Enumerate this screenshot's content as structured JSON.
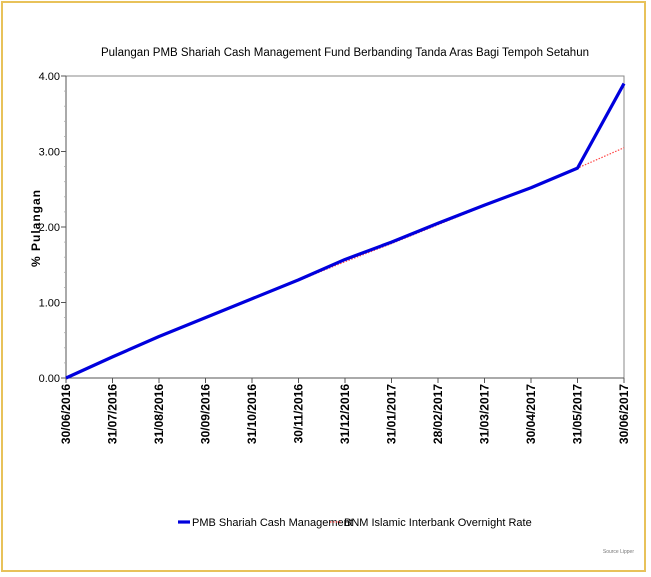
{
  "chart_data": {
    "type": "line",
    "title": "Pulangan PMB Shariah Cash Management Fund Berbanding Tanda Aras Bagi Tempoh Setahun",
    "ylabel": "% Pulangan",
    "xlabel": "",
    "ylim": [
      0,
      4
    ],
    "yticks": [
      "0.00",
      "1.00",
      "2.00",
      "3.00",
      "4.00"
    ],
    "x": [
      "30/06/2016",
      "31/07/2016",
      "31/08/2016",
      "30/09/2016",
      "31/10/2016",
      "30/11/2016",
      "31/12/2016",
      "31/01/2017",
      "28/02/2017",
      "31/03/2017",
      "30/04/2017",
      "31/05/2017",
      "30/06/2017"
    ],
    "series": [
      {
        "name": "PMB Shariah Cash Management",
        "color": "#0000dd",
        "style": "solid",
        "values": [
          0.0,
          0.28,
          0.55,
          0.8,
          1.05,
          1.3,
          1.57,
          1.8,
          2.05,
          2.29,
          2.52,
          2.78,
          3.9
        ]
      },
      {
        "name": "BNM Islamic Interbank Overnight Rate",
        "color": "#ff4444",
        "style": "dotted",
        "values": [
          0.0,
          0.27,
          0.54,
          0.79,
          1.04,
          1.29,
          1.54,
          1.78,
          2.03,
          2.28,
          2.52,
          2.78,
          3.05
        ]
      }
    ],
    "grid": false,
    "legend_position": "bottom"
  },
  "source_text": "Source Lipper"
}
